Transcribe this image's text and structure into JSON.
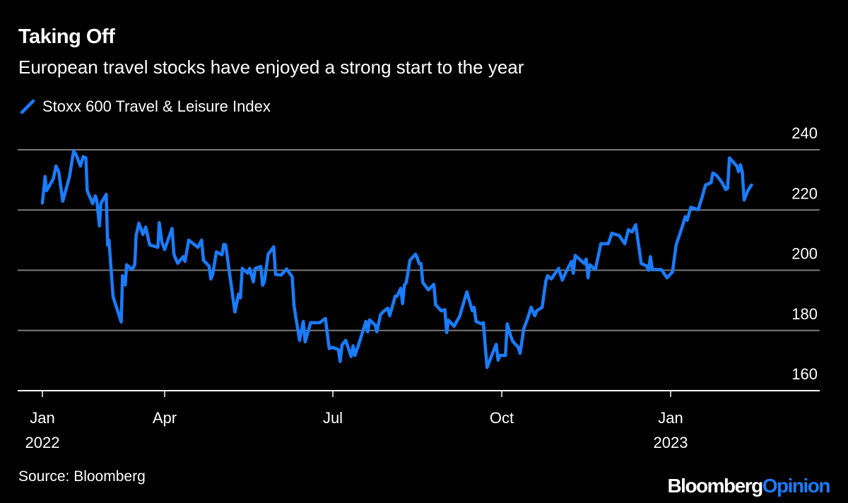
{
  "title": "Taking Off",
  "subtitle": "European travel stocks have enjoyed a strong start to the year",
  "source": "Source: Bloomberg",
  "logo": {
    "brand": "Bloomberg",
    "suffix": "Opinion"
  },
  "colors": {
    "series": "#1a7cff",
    "background": "#000000",
    "grid": "#7a7a7a"
  },
  "chart_data": {
    "type": "line",
    "title": "Taking Off",
    "subtitle": "European travel stocks have enjoyed a strong start to the year",
    "xlabel": "",
    "ylabel": "",
    "ylim": [
      160,
      240
    ],
    "y_ticks": [
      "240",
      "220",
      "200",
      "180",
      "160"
    ],
    "y_axis_side": "right",
    "x_ticks": [
      {
        "date": "2022-01-01",
        "label": "Jan",
        "sublabel": "2022"
      },
      {
        "date": "2022-04-01",
        "label": "Apr",
        "sublabel": ""
      },
      {
        "date": "2022-07-01",
        "label": "Jul",
        "sublabel": ""
      },
      {
        "date": "2022-10-01",
        "label": "Oct",
        "sublabel": ""
      },
      {
        "date": "2023-01-01",
        "label": "Jan",
        "sublabel": "2023"
      }
    ],
    "grid": true,
    "legend_position": "top-left",
    "series": [
      {
        "name": "Stoxx 600 Travel & Leisure Index",
        "color": "#1a7cff",
        "points": [
          [
            "2022-01-01",
            222.3
          ],
          [
            "2022-01-03",
            231.1
          ],
          [
            "2022-01-04",
            226.4
          ],
          [
            "2022-01-09",
            230.3
          ],
          [
            "2022-01-11",
            234.6
          ],
          [
            "2022-01-13",
            232.7
          ],
          [
            "2022-01-16",
            222.9
          ],
          [
            "2022-01-21",
            231.1
          ],
          [
            "2022-01-24",
            239.7
          ],
          [
            "2022-01-26",
            238.1
          ],
          [
            "2022-01-29",
            234.6
          ],
          [
            "2022-01-31",
            237.7
          ],
          [
            "2022-02-02",
            237.3
          ],
          [
            "2022-02-03",
            226.4
          ],
          [
            "2022-02-07",
            222.1
          ],
          [
            "2022-02-09",
            224.7
          ],
          [
            "2022-02-10",
            223.3
          ],
          [
            "2022-02-12",
            214.7
          ],
          [
            "2022-02-13",
            222.1
          ],
          [
            "2022-02-17",
            225.2
          ],
          [
            "2022-02-18",
            208.4
          ],
          [
            "2022-02-19",
            210.0
          ],
          [
            "2022-02-22",
            191.2
          ],
          [
            "2022-02-28",
            182.8
          ],
          [
            "2022-03-01",
            198.2
          ],
          [
            "2022-03-03",
            195.1
          ],
          [
            "2022-03-04",
            201.8
          ],
          [
            "2022-03-08",
            200.2
          ],
          [
            "2022-03-10",
            201.8
          ],
          [
            "2022-03-11",
            211.5
          ],
          [
            "2022-03-13",
            215.6
          ],
          [
            "2022-03-16",
            211.9
          ],
          [
            "2022-03-18",
            214.3
          ],
          [
            "2022-03-21",
            208.4
          ],
          [
            "2022-03-27",
            207.6
          ],
          [
            "2022-03-28",
            215.8
          ],
          [
            "2022-03-30",
            209.2
          ],
          [
            "2022-04-01",
            206.9
          ],
          [
            "2022-04-05",
            213.9
          ],
          [
            "2022-04-06",
            205.3
          ],
          [
            "2022-04-08",
            202.3
          ],
          [
            "2022-04-11",
            204.5
          ],
          [
            "2022-04-12",
            202.9
          ],
          [
            "2022-04-14",
            210.0
          ],
          [
            "2022-04-19",
            207.6
          ],
          [
            "2022-04-21",
            210.0
          ],
          [
            "2022-04-22",
            203.3
          ],
          [
            "2022-04-25",
            201.4
          ],
          [
            "2022-04-26",
            197.1
          ],
          [
            "2022-04-27",
            198.6
          ],
          [
            "2022-04-29",
            206.1
          ],
          [
            "2022-05-02",
            205.1
          ],
          [
            "2022-05-03",
            208.6
          ],
          [
            "2022-05-04",
            208.4
          ],
          [
            "2022-05-09",
            186.1
          ],
          [
            "2022-05-11",
            192.1
          ],
          [
            "2022-05-12",
            190.8
          ],
          [
            "2022-05-13",
            200.6
          ],
          [
            "2022-05-16",
            199.0
          ],
          [
            "2022-05-17",
            200.6
          ],
          [
            "2022-05-19",
            196.1
          ],
          [
            "2022-05-20",
            200.6
          ],
          [
            "2022-05-23",
            201.2
          ],
          [
            "2022-05-24",
            195.0
          ],
          [
            "2022-05-25",
            196.3
          ],
          [
            "2022-05-27",
            205.3
          ],
          [
            "2022-05-30",
            207.8
          ],
          [
            "2022-05-31",
            198.6
          ],
          [
            "2022-06-03",
            198.4
          ],
          [
            "2022-06-06",
            200.4
          ],
          [
            "2022-06-09",
            197.8
          ],
          [
            "2022-06-10",
            188.1
          ],
          [
            "2022-06-13",
            176.7
          ],
          [
            "2022-06-15",
            183.0
          ],
          [
            "2022-06-16",
            176.2
          ],
          [
            "2022-06-19",
            182.6
          ],
          [
            "2022-06-24",
            182.6
          ],
          [
            "2022-06-27",
            184.0
          ],
          [
            "2022-06-29",
            174.0
          ],
          [
            "2022-07-01",
            174.4
          ],
          [
            "2022-07-04",
            173.6
          ],
          [
            "2022-07-05",
            169.7
          ],
          [
            "2022-07-06",
            175.2
          ],
          [
            "2022-07-08",
            176.7
          ],
          [
            "2022-07-11",
            171.3
          ],
          [
            "2022-07-12",
            174.9
          ],
          [
            "2022-07-13",
            171.7
          ],
          [
            "2022-07-15",
            175.2
          ],
          [
            "2022-07-19",
            183.0
          ],
          [
            "2022-07-20",
            179.5
          ],
          [
            "2022-07-21",
            183.5
          ],
          [
            "2022-07-24",
            181.8
          ],
          [
            "2022-07-25",
            179.6
          ],
          [
            "2022-07-27",
            185.3
          ],
          [
            "2022-07-29",
            186.5
          ],
          [
            "2022-07-31",
            187.4
          ],
          [
            "2022-08-01",
            184.9
          ],
          [
            "2022-08-04",
            191.4
          ],
          [
            "2022-08-05",
            191.4
          ],
          [
            "2022-08-07",
            194.0
          ],
          [
            "2022-08-08",
            188.9
          ],
          [
            "2022-08-09",
            195.1
          ],
          [
            "2022-08-10",
            195.9
          ],
          [
            "2022-08-12",
            203.3
          ],
          [
            "2022-08-15",
            205.3
          ],
          [
            "2022-08-16",
            204.1
          ],
          [
            "2022-08-17",
            202.2
          ],
          [
            "2022-08-18",
            202.2
          ],
          [
            "2022-08-19",
            195.9
          ],
          [
            "2022-08-22",
            193.5
          ],
          [
            "2022-08-25",
            195.3
          ],
          [
            "2022-08-26",
            188.5
          ],
          [
            "2022-08-29",
            186.5
          ],
          [
            "2022-08-31",
            186.9
          ],
          [
            "2022-09-01",
            179.3
          ],
          [
            "2022-09-02",
            183.4
          ],
          [
            "2022-09-05",
            181.4
          ],
          [
            "2022-09-08",
            184.6
          ],
          [
            "2022-09-12",
            192.8
          ],
          [
            "2022-09-15",
            186.5
          ],
          [
            "2022-09-16",
            187.7
          ],
          [
            "2022-09-17",
            183.0
          ],
          [
            "2022-09-20",
            182.2
          ],
          [
            "2022-09-21",
            182.6
          ],
          [
            "2022-09-23",
            167.7
          ],
          [
            "2022-09-26",
            172.4
          ],
          [
            "2022-09-28",
            175.4
          ],
          [
            "2022-09-29",
            170.1
          ],
          [
            "2022-09-30",
            171.7
          ],
          [
            "2022-10-03",
            171.7
          ],
          [
            "2022-10-04",
            182.2
          ],
          [
            "2022-10-06",
            177.9
          ],
          [
            "2022-10-07",
            176.4
          ],
          [
            "2022-10-10",
            174.4
          ],
          [
            "2022-10-11",
            172.4
          ],
          [
            "2022-10-13",
            180.6
          ],
          [
            "2022-10-15",
            183.8
          ],
          [
            "2022-10-17",
            187.7
          ],
          [
            "2022-10-19",
            184.9
          ],
          [
            "2022-10-20",
            186.5
          ],
          [
            "2022-10-23",
            187.7
          ],
          [
            "2022-10-25",
            196.3
          ],
          [
            "2022-10-26",
            198.2
          ],
          [
            "2022-10-28",
            197.1
          ],
          [
            "2022-11-01",
            200.6
          ],
          [
            "2022-11-03",
            196.7
          ],
          [
            "2022-11-05",
            199.4
          ],
          [
            "2022-11-08",
            202.9
          ],
          [
            "2022-11-09",
            199.0
          ],
          [
            "2022-11-10",
            204.9
          ],
          [
            "2022-11-15",
            202.2
          ],
          [
            "2022-11-16",
            203.7
          ],
          [
            "2022-11-17",
            197.5
          ],
          [
            "2022-11-18",
            201.8
          ],
          [
            "2022-11-21",
            200.2
          ],
          [
            "2022-11-24",
            208.8
          ],
          [
            "2022-11-28",
            208.8
          ],
          [
            "2022-11-30",
            212.3
          ],
          [
            "2022-12-04",
            211.5
          ],
          [
            "2022-12-07",
            208.8
          ],
          [
            "2022-12-09",
            213.5
          ],
          [
            "2022-12-11",
            212.7
          ],
          [
            "2022-12-13",
            215.1
          ],
          [
            "2022-12-16",
            202.2
          ],
          [
            "2022-12-19",
            201.4
          ],
          [
            "2022-12-20",
            200.0
          ],
          [
            "2022-12-21",
            204.5
          ],
          [
            "2022-12-22",
            200.2
          ],
          [
            "2022-12-27",
            200.2
          ],
          [
            "2022-12-30",
            197.5
          ],
          [
            "2023-01-02",
            199.4
          ],
          [
            "2023-01-04",
            208.4
          ],
          [
            "2023-01-07",
            213.9
          ],
          [
            "2023-01-09",
            217.8
          ],
          [
            "2023-01-10",
            216.6
          ],
          [
            "2023-01-12",
            220.9
          ],
          [
            "2023-01-16",
            220.1
          ],
          [
            "2023-01-18",
            224.0
          ],
          [
            "2023-01-20",
            228.3
          ],
          [
            "2023-01-23",
            229.1
          ],
          [
            "2023-01-24",
            232.3
          ],
          [
            "2023-01-26",
            231.5
          ],
          [
            "2023-01-29",
            229.1
          ],
          [
            "2023-01-31",
            226.8
          ],
          [
            "2023-02-01",
            227.2
          ],
          [
            "2023-02-02",
            237.3
          ],
          [
            "2023-02-06",
            234.6
          ],
          [
            "2023-02-07",
            232.7
          ],
          [
            "2023-02-08",
            235.0
          ],
          [
            "2023-02-09",
            232.7
          ],
          [
            "2023-02-10",
            223.3
          ],
          [
            "2023-02-12",
            226.4
          ],
          [
            "2023-02-14",
            228.3
          ]
        ]
      }
    ]
  }
}
